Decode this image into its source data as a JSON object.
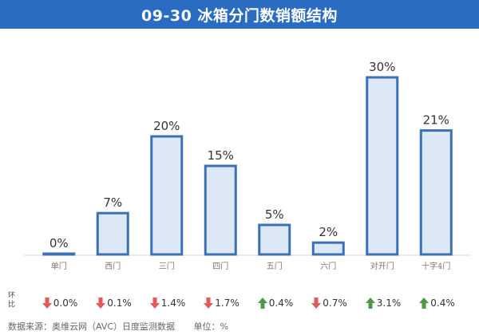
{
  "header": {
    "title": "09-30 冰箱分门数销额结构"
  },
  "chart_data": {
    "type": "bar",
    "title": "09-30 冰箱分门数销额结构",
    "categories": [
      "单门",
      "西门",
      "三门",
      "四门",
      "五门",
      "六门",
      "对开门",
      "十字4门"
    ],
    "values": [
      0,
      7,
      20,
      15,
      5,
      2,
      30,
      21
    ],
    "value_labels": [
      "0%",
      "7%",
      "20%",
      "15%",
      "5%",
      "2%",
      "30%",
      "21%"
    ],
    "ylim": [
      0,
      30
    ],
    "grid": false,
    "colors": {
      "fill": "#dde8f6",
      "stroke": "#3b70b5"
    }
  },
  "mom": {
    "label": "环比",
    "items": [
      {
        "direction": "down",
        "text": "0.0%"
      },
      {
        "direction": "down",
        "text": "0.1%"
      },
      {
        "direction": "down",
        "text": "1.4%"
      },
      {
        "direction": "down",
        "text": "1.7%"
      },
      {
        "direction": "up",
        "text": "0.4%"
      },
      {
        "direction": "down",
        "text": "0.7%"
      },
      {
        "direction": "up",
        "text": "3.1%"
      },
      {
        "direction": "up",
        "text": "0.4%"
      }
    ],
    "colors": {
      "down": "#e05a5a",
      "up": "#4a9a4a"
    }
  },
  "footer": {
    "source": "数据来源：奥维云网（AVC）日度监测数据",
    "unit": "单位：%"
  }
}
